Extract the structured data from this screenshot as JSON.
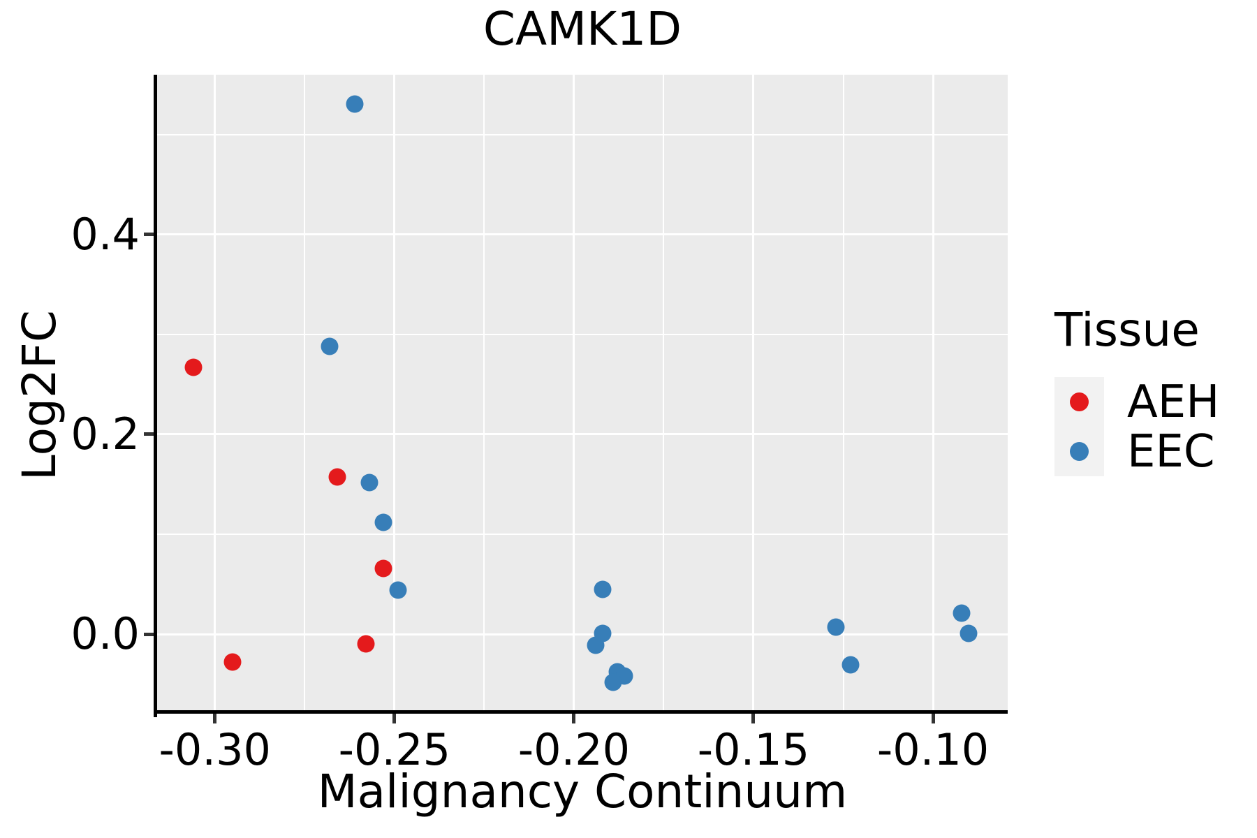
{
  "chart_data": {
    "type": "scatter",
    "title": "CAMK1D",
    "xlabel": "Malignancy Continuum",
    "ylabel": "Log2FC",
    "legend_title": "Tissue",
    "legend_position": "right",
    "grid": "major and minor white gridlines on gray panel",
    "xlim": [
      -0.3161,
      -0.0792
    ],
    "ylim": [
      -0.0797,
      0.5601
    ],
    "x_ticks": [
      -0.3,
      -0.25,
      -0.2,
      -0.15,
      -0.1
    ],
    "x_tick_labels": [
      "-0.30",
      "-0.25",
      "-0.20",
      "-0.15",
      "-0.10"
    ],
    "y_ticks": [
      0.0,
      0.2,
      0.4
    ],
    "y_tick_labels": [
      "0.0",
      "0.2",
      "0.4"
    ],
    "x_minor_gridlines": [
      -0.275,
      -0.225,
      -0.175,
      -0.125
    ],
    "y_minor_gridlines": [
      0.1,
      0.3,
      0.5
    ],
    "series": [
      {
        "name": "AEH",
        "color": "#E41A1C",
        "points": [
          [
            -0.306,
            0.267
          ],
          [
            -0.266,
            0.157
          ],
          [
            -0.253,
            0.066
          ],
          [
            -0.258,
            -0.01
          ],
          [
            -0.295,
            -0.028
          ]
        ]
      },
      {
        "name": "EEC",
        "color": "#377EB8",
        "points": [
          [
            -0.261,
            0.531
          ],
          [
            -0.268,
            0.288
          ],
          [
            -0.257,
            0.152
          ],
          [
            -0.253,
            0.112
          ],
          [
            -0.249,
            0.044
          ],
          [
            -0.192,
            0.045
          ],
          [
            -0.192,
            0.001
          ],
          [
            -0.194,
            -0.011
          ],
          [
            -0.188,
            -0.038
          ],
          [
            -0.186,
            -0.042
          ],
          [
            -0.189,
            -0.048
          ],
          [
            -0.127,
            0.007
          ],
          [
            -0.123,
            -0.031
          ],
          [
            -0.092,
            0.021
          ],
          [
            -0.09,
            0.001
          ]
        ]
      }
    ],
    "colors": {
      "panel_bg": "#EBEBEB",
      "gridline": "#FFFFFF",
      "axis_line": "#000000",
      "tick_mark": "#333333",
      "text": "#000000",
      "legend_key_bg": "#F2F2F2",
      "aeh": "#E41A1C",
      "eec": "#377EB8"
    }
  }
}
